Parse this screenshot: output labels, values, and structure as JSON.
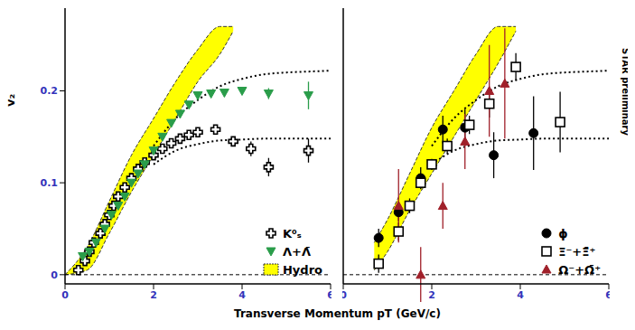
{
  "x_label": "Transverse Momentum pT (GeV/c)",
  "y_label": "v₂",
  "annotation": "STAR preliminary",
  "chart_data": [
    {
      "type": "scatter",
      "xlim": [
        0,
        6
      ],
      "xticks": [
        0,
        2,
        4,
        6
      ],
      "ylim": [
        -0.01,
        0.29
      ],
      "yticks": [
        0,
        0.1,
        0.2
      ],
      "grid": false,
      "legend": "lower right",
      "reference_y": 0,
      "band": {
        "name": "Hydro",
        "color": "#ffff00",
        "x": [
          0,
          0.5,
          1,
          1.5,
          2,
          2.5,
          3,
          3.5,
          3.8
        ],
        "low": [
          0,
          0.005,
          0.045,
          0.09,
          0.13,
          0.17,
          0.21,
          0.24,
          0.265
        ],
        "high": [
          0,
          0.03,
          0.08,
          0.13,
          0.17,
          0.21,
          0.245,
          0.27,
          0.27
        ]
      },
      "fits": [
        {
          "color": "#000000",
          "line_style": "dotted",
          "x": [
            2,
            2.5,
            3,
            3.5,
            4,
            4.5,
            5,
            5.5,
            6
          ],
          "values": [
            0.14,
            0.17,
            0.19,
            0.205,
            0.213,
            0.218,
            0.22,
            0.221,
            0.222
          ]
        },
        {
          "color": "#000000",
          "line_style": "dotted",
          "x": [
            2,
            2.5,
            3,
            3.5,
            4,
            4.5,
            5,
            5.5,
            6
          ],
          "values": [
            0.12,
            0.135,
            0.142,
            0.146,
            0.147,
            0.148,
            0.148,
            0.148,
            0.148
          ]
        }
      ],
      "series": [
        {
          "name": "K⁰ₛ",
          "color": "#000000",
          "marker": "plus-open",
          "x": [
            0.3,
            0.45,
            0.55,
            0.65,
            0.8,
            0.9,
            1.0,
            1.1,
            1.2,
            1.35,
            1.5,
            1.65,
            1.8,
            2.0,
            2.2,
            2.4,
            2.6,
            2.8,
            3.0,
            3.4,
            3.8,
            4.2,
            4.6,
            5.5
          ],
          "values": [
            0.005,
            0.015,
            0.025,
            0.035,
            0.045,
            0.055,
            0.065,
            0.075,
            0.085,
            0.095,
            0.105,
            0.115,
            0.122,
            0.13,
            0.137,
            0.143,
            0.148,
            0.152,
            0.155,
            0.158,
            0.145,
            0.137,
            0.117,
            0.135
          ],
          "errors": [
            null,
            null,
            null,
            null,
            null,
            null,
            null,
            null,
            null,
            null,
            null,
            null,
            null,
            null,
            null,
            null,
            null,
            null,
            null,
            null,
            null,
            0.008,
            0.01,
            0.013
          ]
        },
        {
          "name": "Λ+Λ̄",
          "color": "#2a9d4a",
          "marker": "triangle-down",
          "x": [
            0.4,
            0.55,
            0.7,
            0.9,
            1.05,
            1.2,
            1.35,
            1.5,
            1.65,
            1.8,
            2.0,
            2.2,
            2.4,
            2.6,
            2.8,
            3.0,
            3.3,
            3.6,
            4.0,
            4.6,
            5.5
          ],
          "values": [
            0.02,
            0.025,
            0.035,
            0.05,
            0.065,
            0.075,
            0.085,
            0.1,
            0.11,
            0.12,
            0.135,
            0.15,
            0.165,
            0.175,
            0.185,
            0.195,
            0.197,
            0.198,
            0.2,
            0.197,
            0.195
          ],
          "errors": [
            null,
            null,
            null,
            null,
            null,
            null,
            null,
            null,
            null,
            null,
            null,
            null,
            null,
            null,
            null,
            null,
            null,
            null,
            null,
            0.006,
            0.015
          ]
        }
      ]
    },
    {
      "type": "scatter",
      "xlim": [
        0,
        6
      ],
      "xticks": [
        0,
        2,
        4,
        6
      ],
      "ylim": [
        -0.01,
        0.29
      ],
      "yticks": [
        0,
        0.1,
        0.2
      ],
      "grid": false,
      "tick_labels": "x",
      "legend": "lower right",
      "reference_y": 0,
      "band": {
        "color": "#ffff00",
        "x": [
          0.7,
          1,
          1.5,
          2,
          2.5,
          3,
          3.5,
          3.9
        ],
        "low": [
          0.005,
          0.025,
          0.07,
          0.11,
          0.15,
          0.19,
          0.23,
          0.265
        ],
        "high": [
          0.035,
          0.06,
          0.11,
          0.16,
          0.2,
          0.24,
          0.27,
          0.27
        ]
      },
      "fits": [
        {
          "color": "#000000",
          "line_style": "dotted",
          "x": [
            2,
            2.5,
            3,
            3.5,
            4,
            4.5,
            5,
            5.5,
            6
          ],
          "values": [
            0.14,
            0.17,
            0.19,
            0.205,
            0.213,
            0.218,
            0.22,
            0.221,
            0.222
          ]
        },
        {
          "color": "#000000",
          "line_style": "dotted",
          "x": [
            2,
            2.5,
            3,
            3.5,
            4,
            4.5,
            5,
            5.5,
            6
          ],
          "values": [
            0.12,
            0.135,
            0.142,
            0.146,
            0.147,
            0.148,
            0.148,
            0.148,
            0.148
          ]
        }
      ],
      "series": [
        {
          "name": "ϕ",
          "color": "#000000",
          "marker": "circle",
          "x": [
            0.8,
            1.25,
            1.75,
            2.25,
            2.75,
            3.4,
            4.3
          ],
          "values": [
            0.04,
            0.068,
            0.105,
            0.158,
            0.16,
            0.13,
            0.154
          ],
          "errors": [
            0.01,
            0.01,
            0.012,
            0.015,
            0.02,
            0.025,
            0.04
          ]
        },
        {
          "name": "Ξ⁻+Ξ̄⁺",
          "color": "#000000",
          "marker": "square-open",
          "x": [
            0.8,
            1.25,
            1.5,
            1.75,
            2.0,
            2.35,
            2.85,
            3.3,
            3.9,
            4.9
          ],
          "values": [
            0.012,
            0.047,
            0.075,
            0.1,
            0.12,
            0.14,
            0.163,
            0.186,
            0.226,
            0.166
          ],
          "errors": [
            0.01,
            0.01,
            0.008,
            0.006,
            0.006,
            0.008,
            0.01,
            0.015,
            0.015,
            0.033
          ]
        },
        {
          "name": "Ω⁻+Ω̄⁺",
          "color": "#a0202a",
          "marker": "triangle",
          "x": [
            1.25,
            1.75,
            2.25,
            2.75,
            3.3,
            3.65
          ],
          "values": [
            0.075,
            0.0,
            0.075,
            0.145,
            0.2,
            0.208
          ],
          "errors": [
            0.04,
            0.03,
            0.025,
            0.03,
            0.05,
            0.06
          ]
        }
      ]
    }
  ]
}
